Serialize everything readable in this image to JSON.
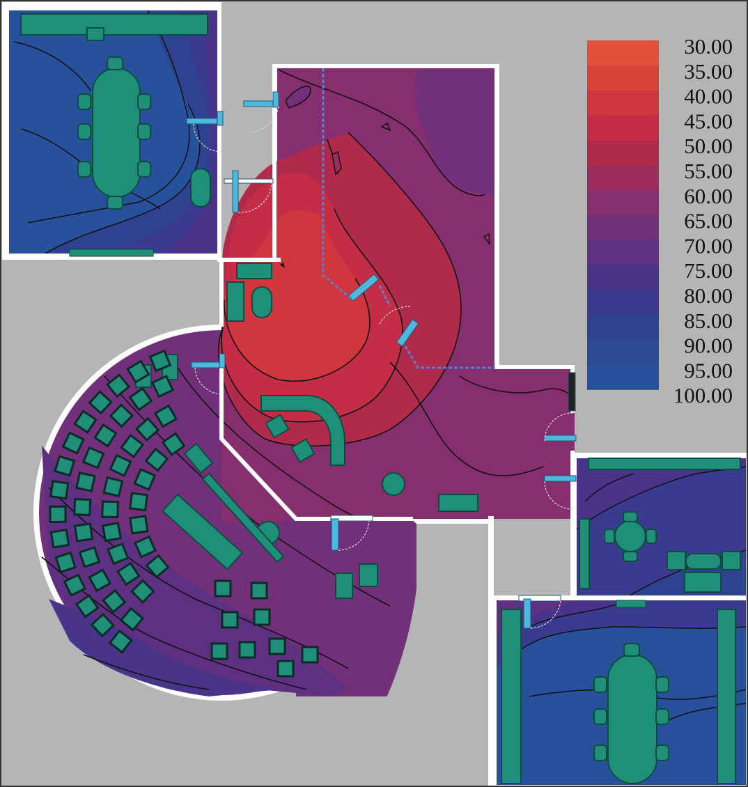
{
  "legend": {
    "labels": [
      "30.00",
      "35.00",
      "40.00",
      "45.00",
      "50.00",
      "55.00",
      "60.00",
      "65.00",
      "70.00",
      "75.00",
      "80.00",
      "85.00",
      "90.00",
      "95.00",
      "100.00"
    ],
    "band_colors": [
      "#e1513b",
      "#d9433a",
      "#d0363d",
      "#c42d45",
      "#b02a4c",
      "#9a2d5c",
      "#862f6e",
      "#73307a",
      "#5d3082",
      "#4a348a",
      "#3a3a8f",
      "#2f4290",
      "#2b4b94",
      "#27519a"
    ]
  },
  "palette": {
    "background": "#b5b5b5",
    "wall": "#ffffff",
    "furniture": "#1f8f7a",
    "door": "#4fb6dc",
    "contour_line": "#111111"
  }
}
